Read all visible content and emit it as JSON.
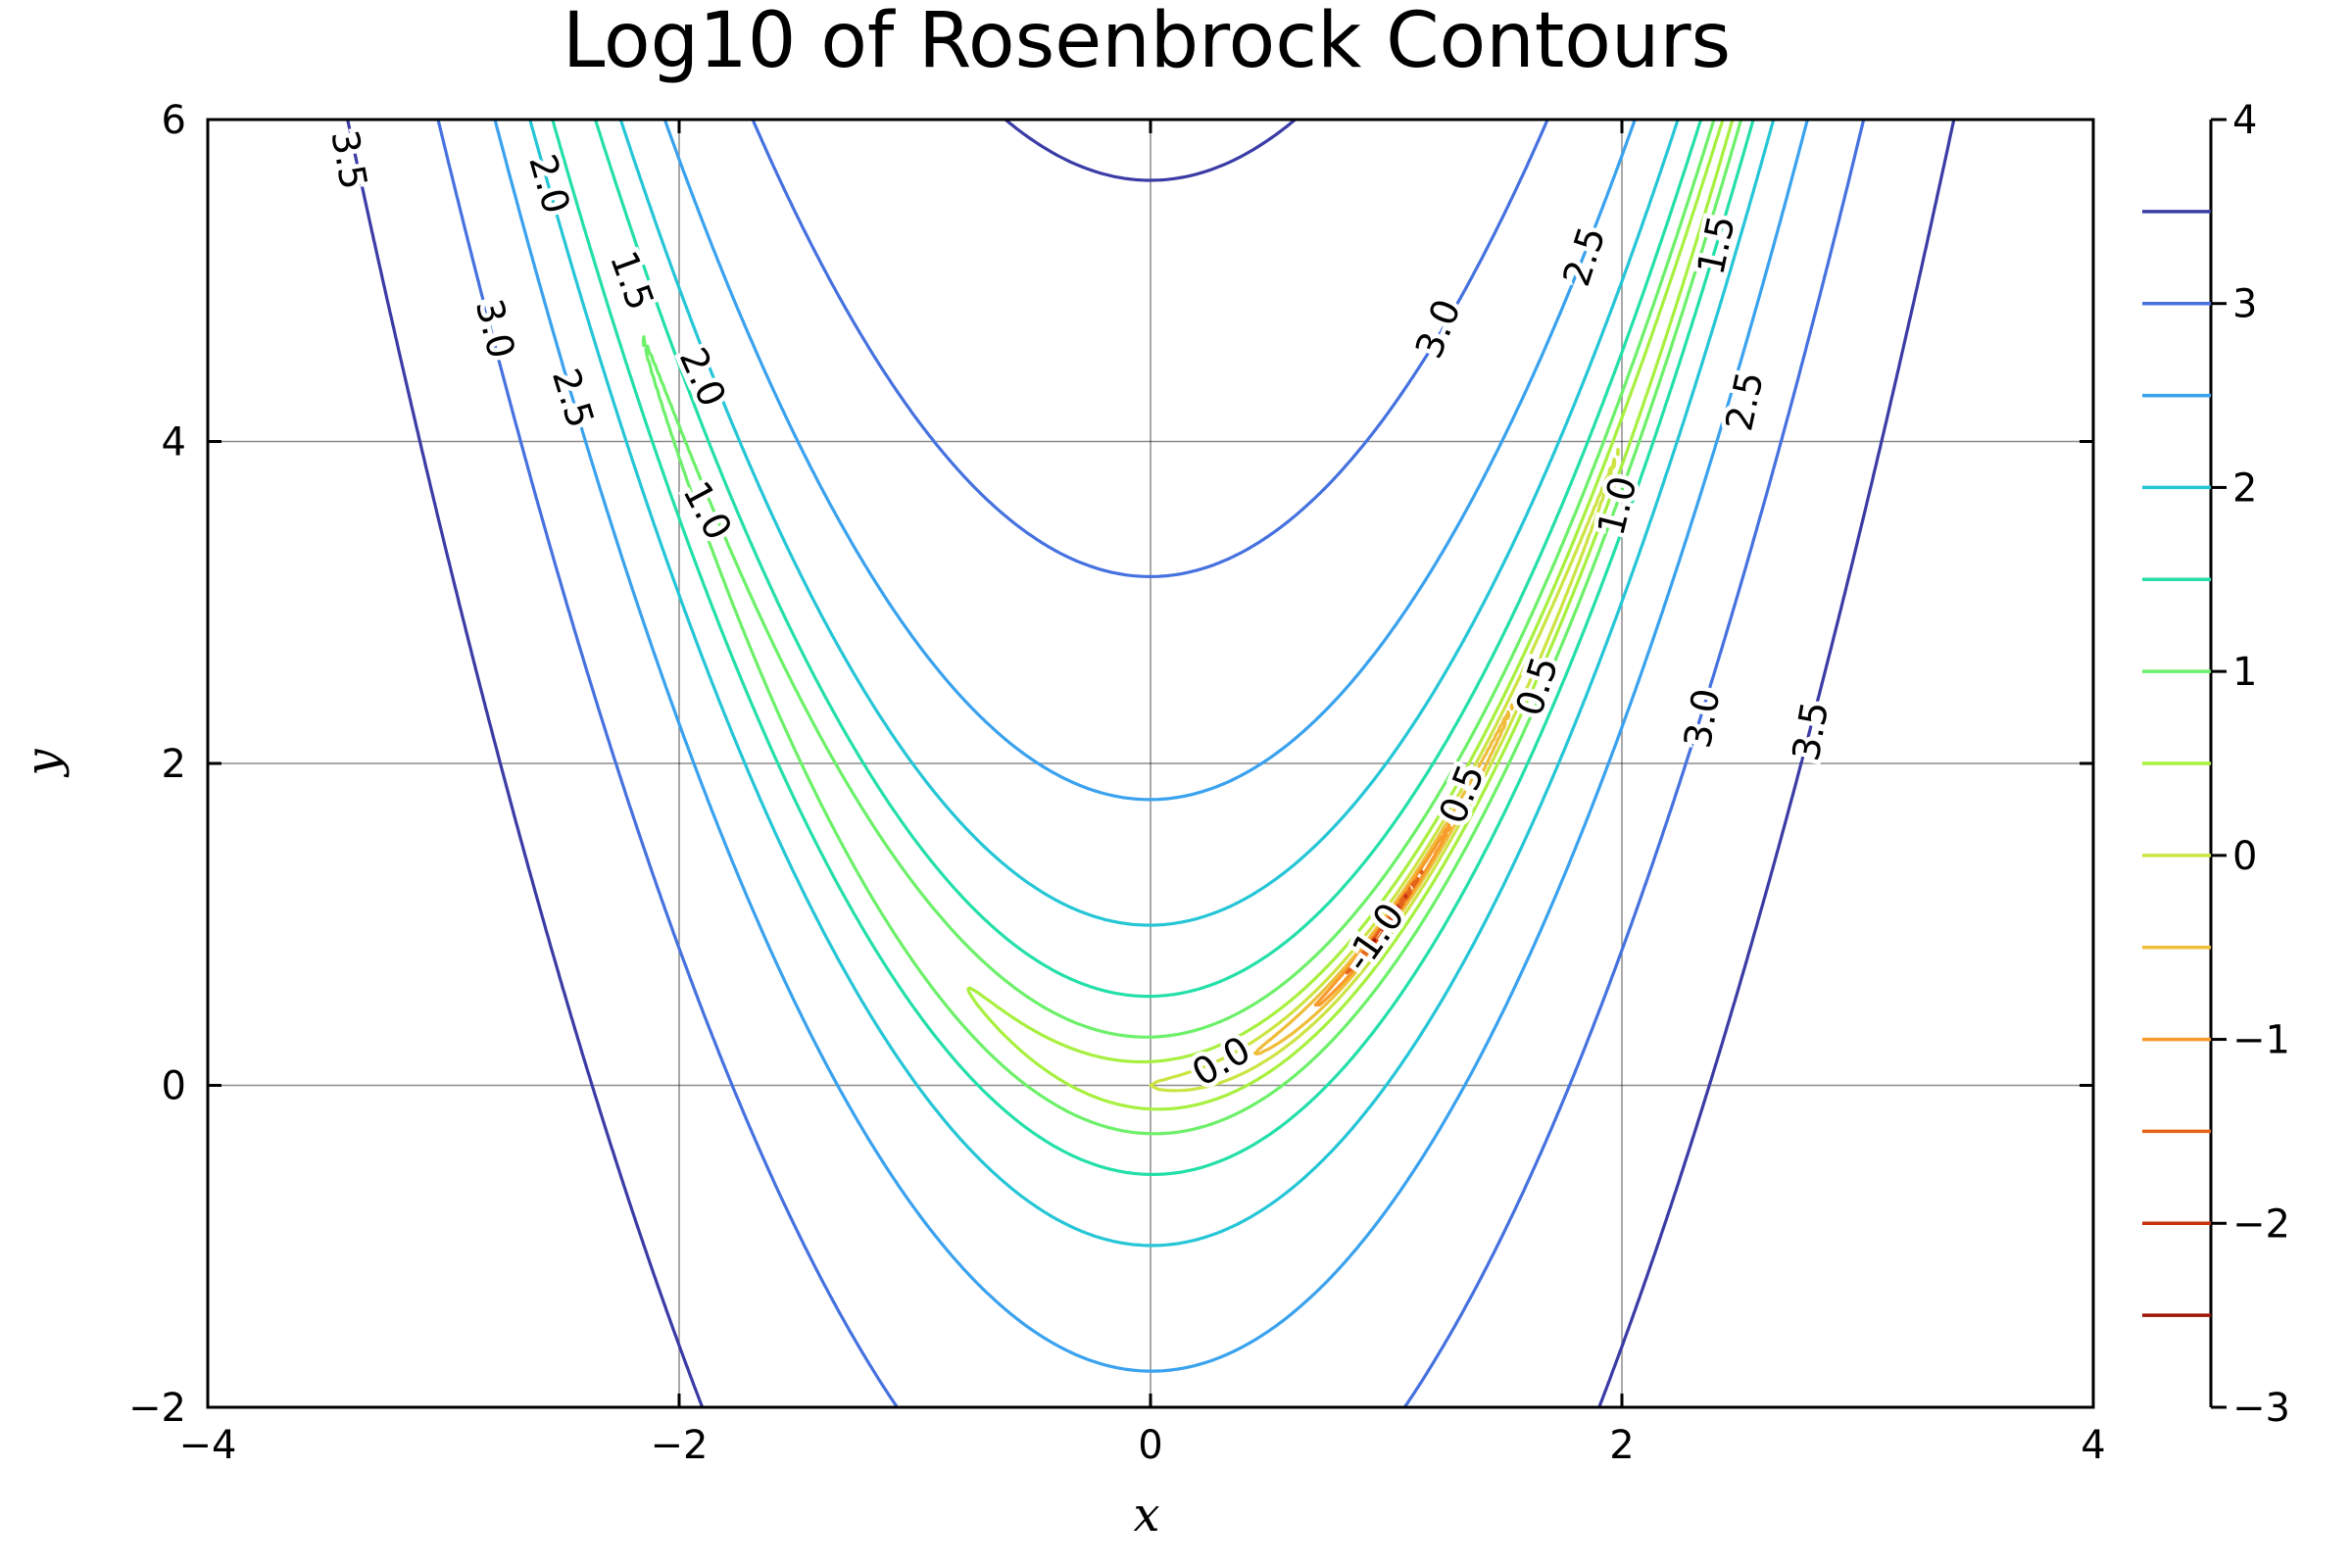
{
  "chart_data": {
    "type": "contour",
    "title": "Log10 of Rosenbrock Contours",
    "xlabel": "x",
    "ylabel": "y",
    "xlim": [
      -4,
      4
    ],
    "ylim": [
      -2,
      6
    ],
    "grid": true,
    "x_ticks": [
      -4,
      -2,
      0,
      2,
      4
    ],
    "y_ticks": [
      -2,
      0,
      2,
      4,
      6
    ],
    "x_tick_labels": [
      "−4",
      "−2",
      "0",
      "2",
      "4"
    ],
    "y_tick_labels": [
      "−2",
      "0",
      "2",
      "4",
      "6"
    ],
    "function": "log10((1 - x)^2 + 100 (y - x^2)^2)",
    "levels": [
      3.5,
      3.0,
      2.5,
      2.0,
      1.5,
      1.0,
      0.5,
      0.0,
      -0.5,
      -1.0,
      -1.5,
      -2.0,
      -2.5
    ],
    "level_colors": [
      "#3b3ca6",
      "#4672e0",
      "#3aa2ee",
      "#26c6d6",
      "#25dfaa",
      "#6df06a",
      "#a8f040",
      "#cde444",
      "#efbd3a",
      "#f89a2c",
      "#e4641a",
      "#c83410",
      "#a01503"
    ],
    "colorbar": {
      "range": [
        -3,
        4
      ],
      "ticks": [
        4,
        3,
        2,
        1,
        0,
        -1,
        -2,
        -3
      ],
      "tick_labels": [
        "4",
        "3",
        "2",
        "1",
        "0",
        "−1",
        "−2",
        "−3"
      ]
    },
    "contour_labels": [
      {
        "text": "3.5",
        "x": -3.4,
        "y": 5.75,
        "angle": 80
      },
      {
        "text": "3.0",
        "x": -2.78,
        "y": 4.7,
        "angle": 76
      },
      {
        "text": "2.0",
        "x": -2.55,
        "y": 5.6,
        "angle": 74
      },
      {
        "text": "2.5",
        "x": -2.45,
        "y": 4.27,
        "angle": 73
      },
      {
        "text": "1.5",
        "x": -2.2,
        "y": 5.0,
        "angle": 70
      },
      {
        "text": "2.0",
        "x": -1.9,
        "y": 4.4,
        "angle": 66
      },
      {
        "text": "1.0",
        "x": -1.88,
        "y": 3.57,
        "angle": 62
      },
      {
        "text": "3.0",
        "x": 1.22,
        "y": 4.7,
        "angle": -68
      },
      {
        "text": "2.5",
        "x": 1.84,
        "y": 5.15,
        "angle": -72
      },
      {
        "text": "1.5",
        "x": 2.4,
        "y": 5.22,
        "angle": -78
      },
      {
        "text": "2.5",
        "x": 2.52,
        "y": 4.25,
        "angle": -78
      },
      {
        "text": "1.0",
        "x": 1.98,
        "y": 3.6,
        "angle": -76
      },
      {
        "text": "0.5",
        "x": 1.64,
        "y": 2.48,
        "angle": -72
      },
      {
        "text": "3.0",
        "x": 2.34,
        "y": 2.28,
        "angle": -80
      },
      {
        "text": "3.5",
        "x": 2.8,
        "y": 2.2,
        "angle": -80
      },
      {
        "text": "0.5",
        "x": 1.32,
        "y": 1.81,
        "angle": -68
      },
      {
        "text": "-1.0",
        "x": 0.95,
        "y": 0.92,
        "angle": -55
      },
      {
        "text": "0.0",
        "x": 0.3,
        "y": 0.15,
        "angle": -30
      }
    ]
  }
}
